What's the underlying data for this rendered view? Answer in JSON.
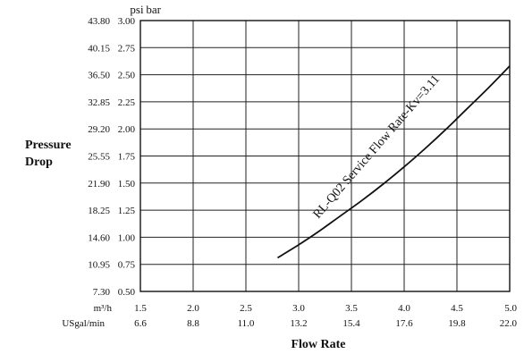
{
  "chart_data": {
    "type": "line",
    "ylabel_lines": [
      "Pressure",
      "Drop"
    ],
    "xlabel": "Flow Rate",
    "y_units": [
      "psi",
      "bar"
    ],
    "x_units": [
      "m³/h",
      "USgal/min"
    ],
    "ylim": [
      0.5,
      3.0
    ],
    "xlim": [
      1.5,
      5.0
    ],
    "grid": true,
    "y_ticks": [
      {
        "bar": "0.50",
        "psi": "7.30"
      },
      {
        "bar": "0.75",
        "psi": "10.95"
      },
      {
        "bar": "1.00",
        "psi": "14.60"
      },
      {
        "bar": "1.25",
        "psi": "18.25"
      },
      {
        "bar": "1.50",
        "psi": "21.90"
      },
      {
        "bar": "1.75",
        "psi": "25.55"
      },
      {
        "bar": "2.00",
        "psi": "29.20"
      },
      {
        "bar": "2.25",
        "psi": "32.85"
      },
      {
        "bar": "2.50",
        "psi": "36.50"
      },
      {
        "bar": "2.75",
        "psi": "40.15"
      },
      {
        "bar": "3.00",
        "psi": "43.80"
      }
    ],
    "x_ticks": [
      {
        "m3h": "1.5",
        "gpm": "6.6"
      },
      {
        "m3h": "2.0",
        "gpm": "8.8"
      },
      {
        "m3h": "2.5",
        "gpm": "11.0"
      },
      {
        "m3h": "3.0",
        "gpm": "13.2"
      },
      {
        "m3h": "3.5",
        "gpm": "15.4"
      },
      {
        "m3h": "4.0",
        "gpm": "17.6"
      },
      {
        "m3h": "4.5",
        "gpm": "19.8"
      },
      {
        "m3h": "5.0",
        "gpm": "22.0"
      }
    ],
    "series": [
      {
        "name": "RL-Q02 Service Flow Rate-Kv=3.11",
        "x": [
          2.8,
          3.0,
          3.2,
          3.4,
          3.6,
          3.8,
          4.0,
          4.2,
          4.4,
          4.6,
          4.8,
          5.0
        ],
        "y": [
          0.81,
          0.93,
          1.06,
          1.2,
          1.34,
          1.49,
          1.65,
          1.82,
          2.0,
          2.19,
          2.38,
          2.58
        ]
      }
    ]
  }
}
